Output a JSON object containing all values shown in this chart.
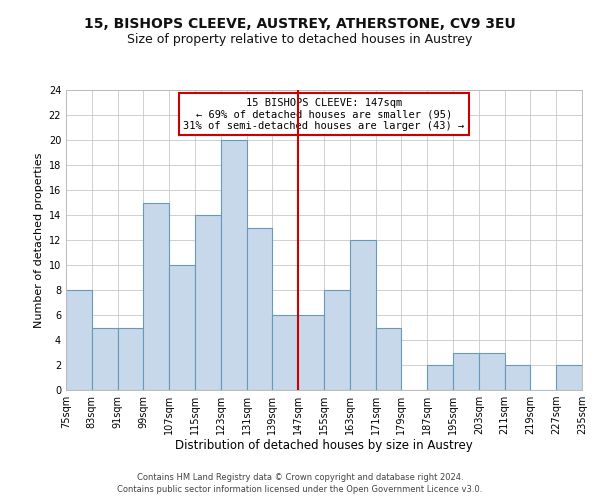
{
  "title1": "15, BISHOPS CLEEVE, AUSTREY, ATHERSTONE, CV9 3EU",
  "title2": "Size of property relative to detached houses in Austrey",
  "xlabel": "Distribution of detached houses by size in Austrey",
  "ylabel": "Number of detached properties",
  "bin_edges": [
    75,
    83,
    91,
    99,
    107,
    115,
    123,
    131,
    139,
    147,
    155,
    163,
    171,
    179,
    187,
    195,
    203,
    211,
    219,
    227,
    235
  ],
  "heights": [
    8,
    5,
    5,
    15,
    10,
    14,
    20,
    13,
    6,
    6,
    8,
    12,
    5,
    0,
    2,
    3,
    3,
    2,
    0,
    2
  ],
  "bar_color": "#c8d8eb",
  "bar_edgecolor": "#6699bb",
  "vline_x": 147,
  "vline_color": "#cc0000",
  "ylim": [
    0,
    24
  ],
  "yticks": [
    0,
    2,
    4,
    6,
    8,
    10,
    12,
    14,
    16,
    18,
    20,
    22,
    24
  ],
  "xlim": [
    75,
    235
  ],
  "annotation_title": "15 BISHOPS CLEEVE: 147sqm",
  "annotation_line1": "← 69% of detached houses are smaller (95)",
  "annotation_line2": "31% of semi-detached houses are larger (43) →",
  "annotation_box_edgecolor": "#cc0000",
  "footer1": "Contains HM Land Registry data © Crown copyright and database right 2024.",
  "footer2": "Contains public sector information licensed under the Open Government Licence v3.0.",
  "background_color": "#ffffff",
  "grid_color": "#c8c8c8",
  "title1_fontsize": 10,
  "title2_fontsize": 9,
  "xlabel_fontsize": 8.5,
  "ylabel_fontsize": 8,
  "tick_label_fontsize": 7,
  "annotation_fontsize": 7.5,
  "footer_fontsize": 6
}
